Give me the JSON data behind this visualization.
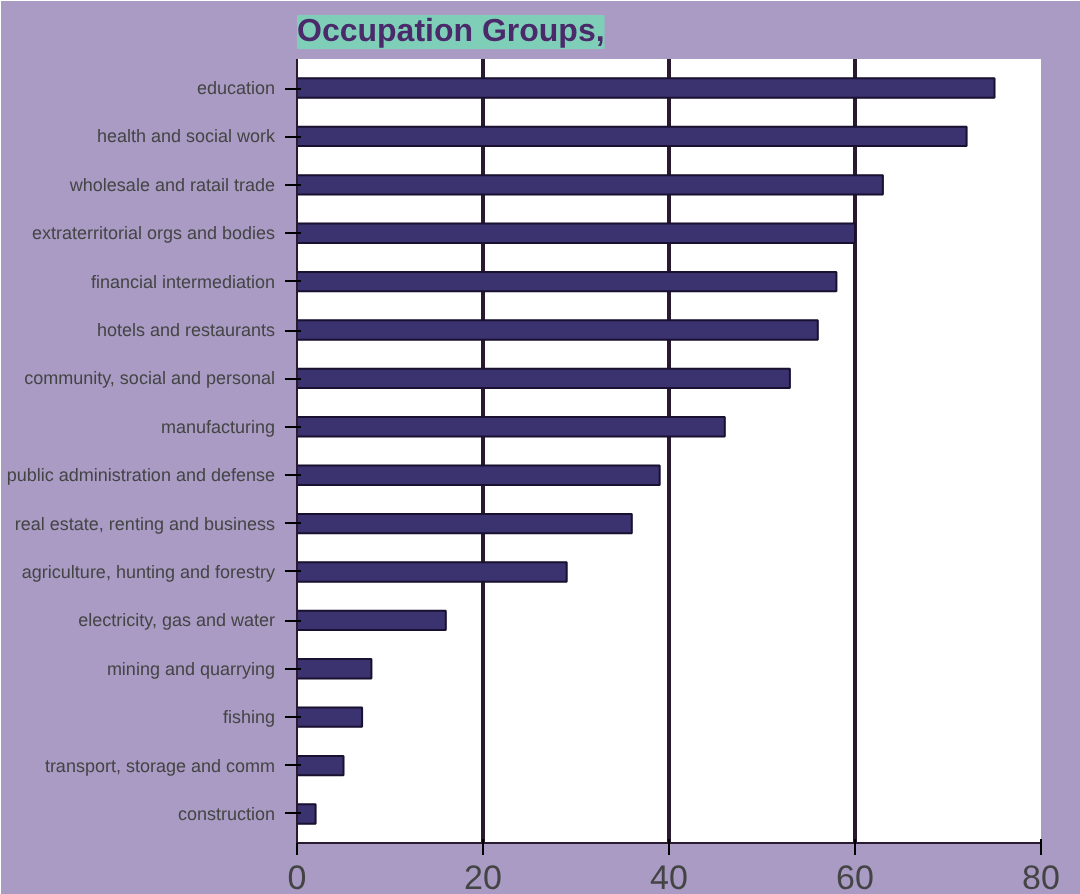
{
  "chart_data": {
    "type": "bar",
    "orientation": "horizontal",
    "title": "Occupation Groups,",
    "categories": [
      "education",
      "health and social work",
      "wholesale and ratail trade",
      "extraterritorial orgs and bodies",
      "financial intermediation",
      "hotels and restaurants",
      "community, social and personal",
      "manufacturing",
      "public administration and defense",
      "real estate, renting and business",
      "agriculture, hunting and forestry",
      "electricity, gas and water",
      "mining and quarrying",
      "fishing",
      "transport, storage and comm",
      "construction"
    ],
    "values": [
      75,
      72,
      63,
      60,
      58,
      56,
      53,
      46,
      39,
      36,
      29,
      16,
      8,
      7,
      5,
      2
    ],
    "color": "#3a3370",
    "xlim": [
      0,
      80
    ],
    "xticks": [
      0,
      20,
      40,
      60,
      80
    ],
    "grid": "x"
  }
}
